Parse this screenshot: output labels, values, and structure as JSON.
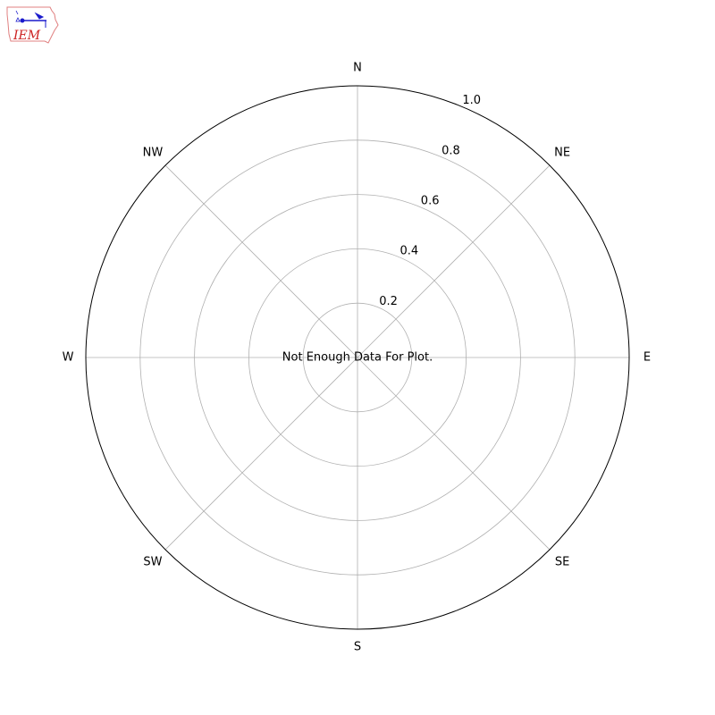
{
  "logo": {
    "text": "IEM",
    "outline_color": "#e05050",
    "symbol_color": "#1a1acc"
  },
  "chart_data": {
    "type": "polar",
    "theta_labels": [
      "N",
      "NE",
      "E",
      "SE",
      "S",
      "SW",
      "W",
      "NW"
    ],
    "r_ticks": [
      0.2,
      0.4,
      0.6,
      0.8,
      1.0
    ],
    "r_tick_labels": [
      "0.2",
      "0.4",
      "0.6",
      "0.8",
      "1.0"
    ],
    "rlim": [
      0,
      1
    ],
    "r_label_direction": "NNE",
    "grid": true,
    "series": [],
    "annotation": "Not Enough Data For Plot.",
    "colors": {
      "grid": "#b0b0b0",
      "outline": "#000000"
    }
  }
}
